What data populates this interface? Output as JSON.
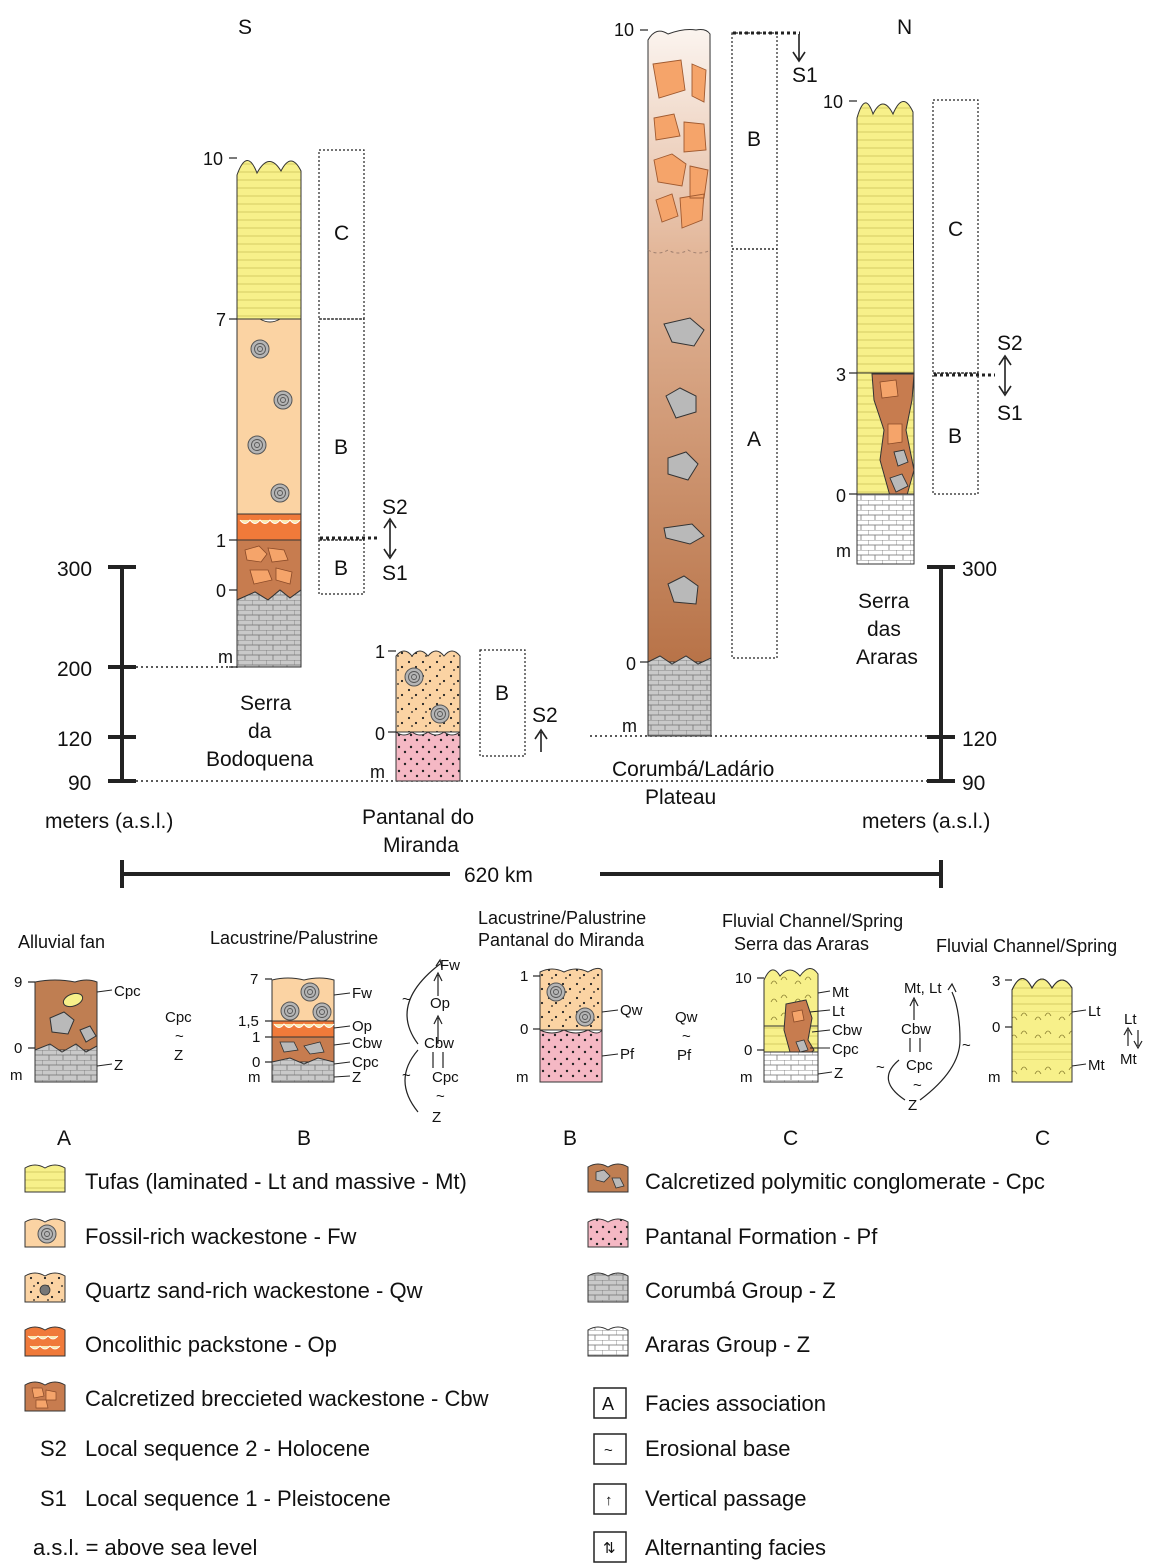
{
  "directions": {
    "south": "S",
    "north": "N"
  },
  "scale_axis": {
    "left_ticks": [
      "300",
      "200",
      "120",
      "90"
    ],
    "right_ticks": [
      "300",
      "120",
      "90"
    ],
    "unit_left": "meters (a.s.l.)",
    "unit_right": "meters (a.s.l.)",
    "distance": "620 km"
  },
  "sections": {
    "bodoquena": {
      "name": [
        "Serra",
        "da",
        "Bodoquena"
      ],
      "ticks": [
        "10",
        "7",
        "1",
        "0",
        "m"
      ],
      "assoc": [
        "C",
        "B",
        "B"
      ],
      "seq": [
        "S2",
        "S1"
      ]
    },
    "miranda": {
      "name": [
        "Pantanal do",
        "Miranda"
      ],
      "ticks": [
        "1",
        "0",
        "m"
      ],
      "assoc": [
        "B"
      ],
      "seq": [
        "S2"
      ]
    },
    "corumba": {
      "name": [
        "Corumbá/Ladário",
        "Plateau"
      ],
      "ticks": [
        "10",
        "0",
        "m"
      ],
      "assoc": [
        "B",
        "A"
      ],
      "seq": [
        "S1"
      ]
    },
    "araras": {
      "name": [
        "Serra",
        "das",
        "Araras"
      ],
      "ticks": [
        "10",
        "3",
        "0",
        "m"
      ],
      "assoc": [
        "C",
        "B"
      ],
      "seq": [
        "S2",
        "S1"
      ]
    }
  },
  "facies_logs": [
    {
      "title": [
        "Alluvial fan"
      ],
      "ticks": [
        "9",
        "0",
        "m"
      ],
      "labels": [
        "Cpc",
        "Z"
      ],
      "transition": [
        "Cpc",
        "~",
        "Z"
      ],
      "assoc": "A"
    },
    {
      "title": [
        "Lacustrine/Palustrine"
      ],
      "ticks": [
        "7",
        "1,5",
        "1",
        "0",
        "m"
      ],
      "labels": [
        "Fw",
        "Op",
        "Cbw",
        "Cpc",
        "Z"
      ],
      "transition": [
        "Fw",
        "Op",
        "Cbw",
        "Cpc",
        "Z",
        "~",
        "~",
        "~"
      ],
      "assoc": "B"
    },
    {
      "title": [
        "Lacustrine/Palustrine",
        "Pantanal do Miranda"
      ],
      "ticks": [
        "1",
        "0",
        "m"
      ],
      "labels": [
        "Qw",
        "Pf"
      ],
      "transition": [
        "Qw",
        "~",
        "Pf"
      ],
      "assoc": "B"
    },
    {
      "title": [
        "Fluvial Channel/Spring",
        "Serra das Araras"
      ],
      "ticks": [
        "10",
        "0",
        "m"
      ],
      "labels": [
        "Mt",
        "Lt",
        "Cbw",
        "Cpc",
        "Z"
      ],
      "transition": [
        "Mt, Lt",
        "Cbw",
        "Cpc",
        "~",
        "Z",
        "~",
        "~"
      ],
      "assoc": "C"
    },
    {
      "title": [
        "Fluvial Channel/Spring"
      ],
      "ticks": [
        "3",
        "0",
        "m"
      ],
      "labels": [
        "Lt",
        "Mt"
      ],
      "transition": [
        "Lt",
        "Mt"
      ],
      "assoc": "C"
    }
  ],
  "legend_left": [
    {
      "key": "Tufas (laminated - Lt and massive - Mt)",
      "swatch": "tufa"
    },
    {
      "key": "Fossil-rich wackestone - Fw",
      "swatch": "fossil"
    },
    {
      "key": "Quartz sand-rich wackestone - Qw",
      "swatch": "quartz"
    },
    {
      "key": "Oncolithic packstone - Op",
      "swatch": "oncolite"
    },
    {
      "key": "Calcretized breccieted wackestone - Cbw",
      "swatch": "breccia"
    },
    {
      "key": "Local sequence 2 - Holocene",
      "symbol": "S2"
    },
    {
      "key": "Local sequence 1 - Pleistocene",
      "symbol": "S1"
    }
  ],
  "legend_right": [
    {
      "key": "Calcretized polymitic conglomerate - Cpc",
      "swatch": "conglomerate"
    },
    {
      "key": "Pantanal Formation - Pf",
      "swatch": "pantanal"
    },
    {
      "key": "Corumbá Group - Z",
      "swatch": "corumba"
    },
    {
      "key": "Araras Group - Z",
      "swatch": "araras"
    },
    {
      "key": "Facies association",
      "symbol": "A"
    },
    {
      "key": "Erosional base",
      "symbol": "~"
    },
    {
      "key": "Vertical passage",
      "symbol": "↑"
    },
    {
      "key": "Alternanting facies",
      "symbol": "⇅"
    }
  ],
  "note": "a.s.l. = above sea level",
  "colors": {
    "tufa": "#f7f08a",
    "fossil": "#fbd3a3",
    "oncolite": "#f07a3a",
    "breccia_matrix": "#c77c4f",
    "breccia_clast": "#f5a46a",
    "conglomerate": "#bf7e52",
    "pantanal": "#f5b8c4",
    "corumba": "#c9c9c9",
    "araras": "#ffffff",
    "clast_grey": "#b9b9b9"
  }
}
